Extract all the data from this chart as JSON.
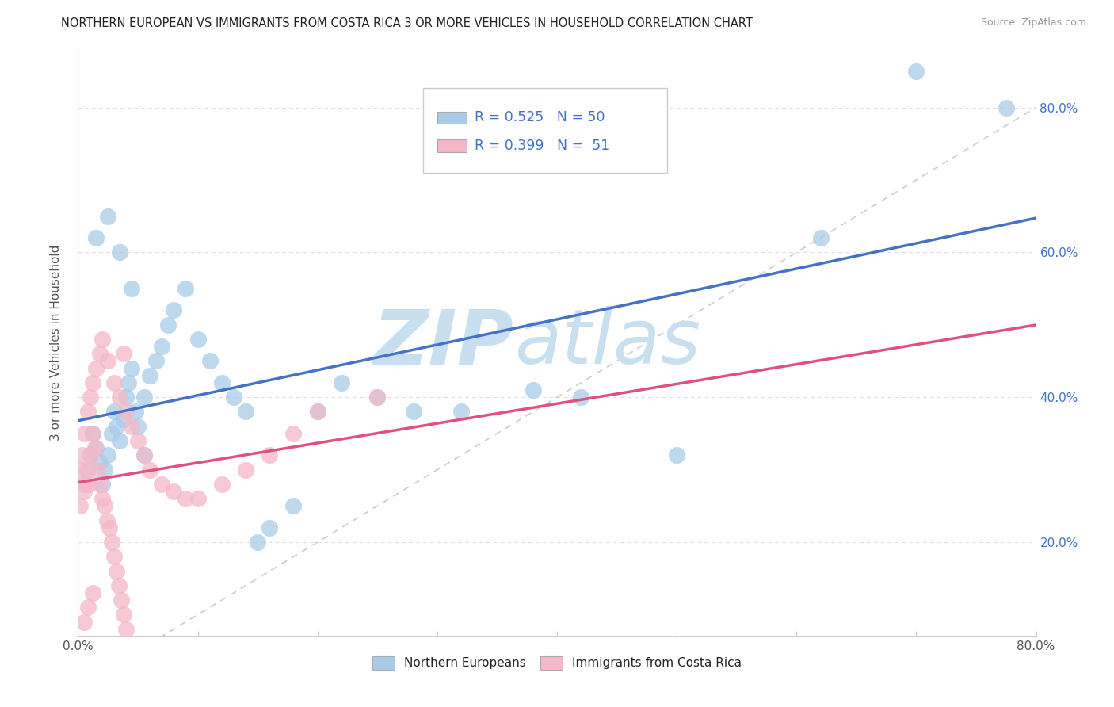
{
  "title": "NORTHERN EUROPEAN VS IMMIGRANTS FROM COSTA RICA 3 OR MORE VEHICLES IN HOUSEHOLD CORRELATION CHART",
  "source": "Source: ZipAtlas.com",
  "ylabel": "3 or more Vehicles in Household",
  "R_blue": 0.525,
  "N_blue": 50,
  "R_pink": 0.399,
  "N_pink": 51,
  "legend_label_blue": "Northern Europeans",
  "legend_label_pink": "Immigrants from Costa Rica",
  "blue_color": "#a8cce8",
  "pink_color": "#f4b8c8",
  "blue_line_color": "#4472c4",
  "pink_line_color": "#e05080",
  "ref_line_color": "#cccccc",
  "watermark_zip_color": "#c8dff0",
  "watermark_atlas_color": "#c8dff0",
  "background_color": "#ffffff",
  "xlim": [
    0.0,
    0.8
  ],
  "ylim": [
    0.07,
    0.88
  ],
  "ytick_color": "#4472c4",
  "blue_x": [
    0.005,
    0.008,
    0.01,
    0.012,
    0.015,
    0.018,
    0.02,
    0.022,
    0.025,
    0.028,
    0.03,
    0.032,
    0.035,
    0.038,
    0.04,
    0.042,
    0.045,
    0.048,
    0.05,
    0.055,
    0.06,
    0.065,
    0.07,
    0.075,
    0.08,
    0.09,
    0.1,
    0.11,
    0.12,
    0.13,
    0.14,
    0.15,
    0.16,
    0.18,
    0.2,
    0.22,
    0.25,
    0.28,
    0.32,
    0.38,
    0.015,
    0.025,
    0.035,
    0.045,
    0.055,
    0.42,
    0.5,
    0.62,
    0.7,
    0.775
  ],
  "blue_y": [
    0.28,
    0.3,
    0.32,
    0.35,
    0.33,
    0.31,
    0.28,
    0.3,
    0.32,
    0.35,
    0.38,
    0.36,
    0.34,
    0.37,
    0.4,
    0.42,
    0.44,
    0.38,
    0.36,
    0.4,
    0.43,
    0.45,
    0.47,
    0.5,
    0.52,
    0.55,
    0.48,
    0.45,
    0.42,
    0.4,
    0.38,
    0.2,
    0.22,
    0.25,
    0.38,
    0.42,
    0.4,
    0.38,
    0.38,
    0.41,
    0.62,
    0.65,
    0.6,
    0.55,
    0.32,
    0.4,
    0.32,
    0.62,
    0.85,
    0.8
  ],
  "pink_x": [
    0.002,
    0.005,
    0.007,
    0.008,
    0.01,
    0.012,
    0.014,
    0.016,
    0.018,
    0.02,
    0.022,
    0.024,
    0.026,
    0.028,
    0.03,
    0.032,
    0.034,
    0.036,
    0.038,
    0.04,
    0.002,
    0.004,
    0.006,
    0.008,
    0.01,
    0.012,
    0.015,
    0.018,
    0.02,
    0.025,
    0.03,
    0.035,
    0.04,
    0.045,
    0.05,
    0.055,
    0.06,
    0.07,
    0.08,
    0.09,
    0.1,
    0.12,
    0.14,
    0.16,
    0.18,
    0.2,
    0.25,
    0.038,
    0.012,
    0.008,
    0.005
  ],
  "pink_y": [
    0.25,
    0.27,
    0.3,
    0.28,
    0.32,
    0.35,
    0.33,
    0.3,
    0.28,
    0.26,
    0.25,
    0.23,
    0.22,
    0.2,
    0.18,
    0.16,
    0.14,
    0.12,
    0.1,
    0.08,
    0.3,
    0.32,
    0.35,
    0.38,
    0.4,
    0.42,
    0.44,
    0.46,
    0.48,
    0.45,
    0.42,
    0.4,
    0.38,
    0.36,
    0.34,
    0.32,
    0.3,
    0.28,
    0.27,
    0.26,
    0.26,
    0.28,
    0.3,
    0.32,
    0.35,
    0.38,
    0.4,
    0.46,
    0.13,
    0.11,
    0.09
  ]
}
